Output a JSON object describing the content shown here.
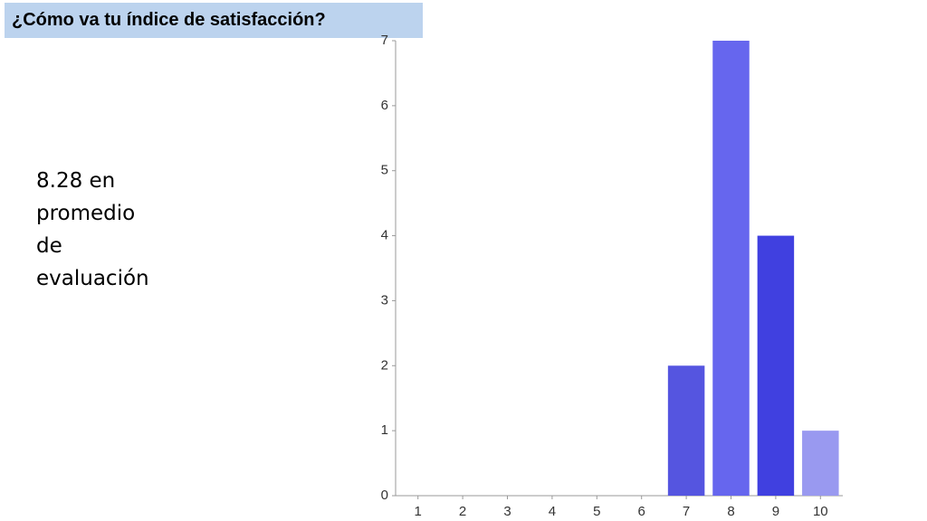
{
  "chart_data": {
    "type": "bar",
    "title": "¿Cómo va tu índice de satisfacción?",
    "annotation": "8.28 en promedio de evaluación",
    "categories": [
      "1",
      "2",
      "3",
      "4",
      "5",
      "6",
      "7",
      "8",
      "9",
      "10"
    ],
    "values": [
      0,
      0,
      0,
      0,
      0,
      0,
      2,
      7,
      4,
      1
    ],
    "colors": [
      "#5555e0",
      "#5555e0",
      "#5555e0",
      "#5555e0",
      "#5555e0",
      "#5555e0",
      "#5555e0",
      "#6666ee",
      "#4040e0",
      "#9999f0"
    ],
    "ylim": [
      0,
      7
    ],
    "yticks": [
      0,
      1,
      2,
      3,
      4,
      5,
      6,
      7
    ],
    "grid": false
  }
}
